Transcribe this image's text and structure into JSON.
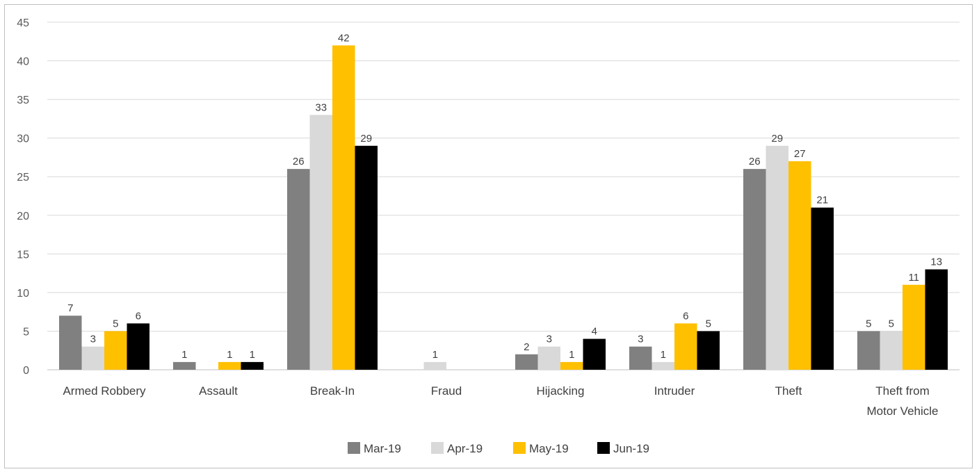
{
  "chart_data": {
    "type": "bar",
    "title": "",
    "xlabel": "",
    "ylabel": "",
    "ylim": [
      0,
      45
    ],
    "yticks": [
      0,
      5,
      10,
      15,
      20,
      25,
      30,
      35,
      40,
      45
    ],
    "grid": true,
    "legend_position": "bottom",
    "categories": [
      [
        "Armed Robbery"
      ],
      [
        "Assault"
      ],
      [
        "Break-In"
      ],
      [
        "Fraud"
      ],
      [
        "Hijacking"
      ],
      [
        "Intruder"
      ],
      [
        "Theft"
      ],
      [
        "Theft from",
        "Motor Vehicle"
      ]
    ],
    "series": [
      {
        "name": "Mar-19",
        "color": "#808080",
        "values": [
          7,
          1,
          26,
          0,
          2,
          3,
          26,
          5
        ]
      },
      {
        "name": "Apr-19",
        "color": "#d9d9d9",
        "values": [
          3,
          0,
          33,
          1,
          3,
          1,
          29,
          5
        ]
      },
      {
        "name": "May-19",
        "color": "#ffc000",
        "values": [
          5,
          1,
          42,
          0,
          1,
          6,
          27,
          11
        ]
      },
      {
        "name": "Jun-19",
        "color": "#000000",
        "values": [
          6,
          1,
          29,
          0,
          4,
          5,
          21,
          13
        ]
      }
    ]
  }
}
